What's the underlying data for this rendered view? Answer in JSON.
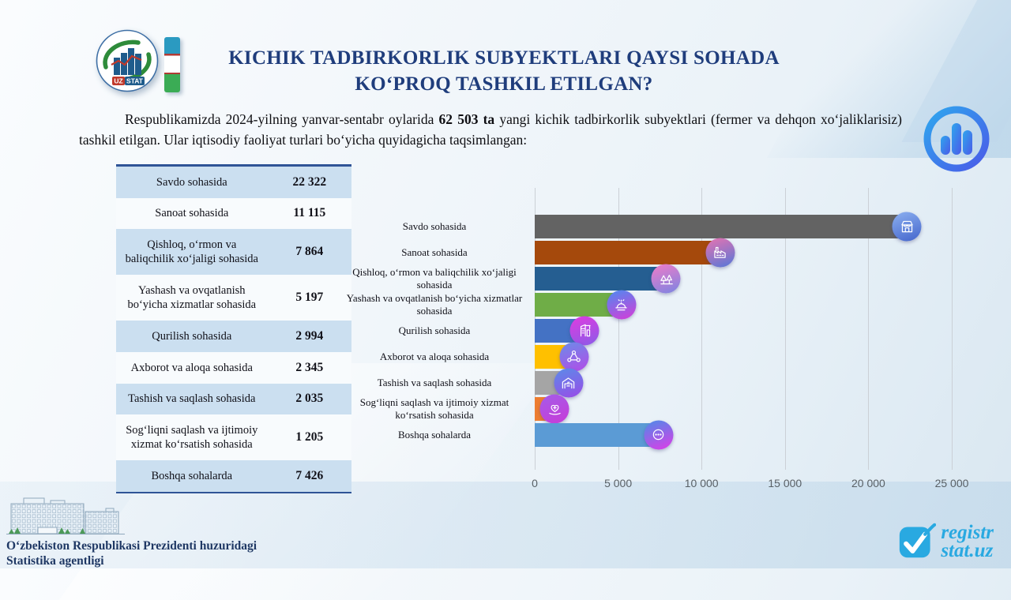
{
  "header": {
    "title_line1": "KICHIK TADBIRKORLIK SUBYEKTLARI QAYSI SOHADA",
    "title_line2": "KO‘PROQ TASHKIL ETILGAN?",
    "logo_uz": "UZ",
    "logo_stat": "STAT"
  },
  "intro": {
    "part1": "Respublikamizda 2024-yilning yanvar-sentabr oylarida ",
    "bold": "62 503 ta",
    "part2": " yangi kichik tadbirkorlik subyektlari (fermer va dehqon xo‘jaliklarisiz) tashkil etilgan. Ular iqtisodiy faoliyat turlari bo‘yicha quyidagicha taqsimlangan:"
  },
  "table": {
    "rows": [
      {
        "label": "Savdo sohasida",
        "value": "22 322"
      },
      {
        "label": "Sanoat sohasida",
        "value": "11 115"
      },
      {
        "label": "Qishloq,  o‘rmon va baliqchilik  xo‘jaligi sohasida",
        "value": "7 864"
      },
      {
        "label": "Yashash va ovqatlanish bo‘yicha  xizmatlar sohasida",
        "value": "5 197"
      },
      {
        "label": "Qurilish  sohasida",
        "value": "2 994"
      },
      {
        "label": "Axborot va aloqa sohasida",
        "value": "2 345"
      },
      {
        "label": "Tashish va saqlash sohasida",
        "value": "2 035"
      },
      {
        "label": "Sog‘liqni  saqlash va ijtimoiy  xizmat ko‘rsatish sohasida",
        "value": "1 205"
      },
      {
        "label": "Boshqa sohalarda",
        "value": "7 426"
      }
    ]
  },
  "chart_data": {
    "type": "bar",
    "orientation": "horizontal",
    "categories": [
      "Savdo sohasida",
      "Sanoat sohasida",
      "Qishloq,  o‘rmon va baliqchilik  xo‘jaligi sohasida",
      "Yashash va ovqatlanish  bo‘yicha xizmatlar  sohasida",
      "Qurilish  sohasida",
      "Axborot va aloqa sohasida",
      "Tashish va saqlash sohasida",
      "Sog‘liqni  saqlash va ijtimoiy  xizmat ko‘rsatish sohasida",
      "Boshqa sohalarda"
    ],
    "values": [
      22322,
      11115,
      7864,
      5197,
      2994,
      2345,
      2035,
      1205,
      7426
    ],
    "xlim": [
      0,
      25000
    ],
    "x_ticks": [
      "0",
      "5 000",
      "10 000",
      "15 000",
      "20 000",
      "25 000"
    ],
    "x_tick_values": [
      0,
      5000,
      10000,
      15000,
      20000,
      25000
    ],
    "grid": "vertical",
    "legend": "none",
    "bar_colors": [
      "#636363",
      "#A5490C",
      "#255E91",
      "#6FAD47",
      "#4472C4",
      "#FFC000",
      "#A5A5A5",
      "#ED7D31",
      "#5B9BD5"
    ],
    "icons": [
      "store-icon",
      "factory-icon",
      "agriculture-icon",
      "catering-icon",
      "construction-icon",
      "communication-icon",
      "warehouse-icon",
      "healthcare-icon",
      "other-icon"
    ],
    "icon_gradients": [
      [
        "#8CB0F0",
        "#4465CC"
      ],
      [
        "#E873B0",
        "#5577D8"
      ],
      [
        "#F07CC8",
        "#7B84E2"
      ],
      [
        "#4C8CF0",
        "#D83BD8"
      ],
      [
        "#E03BE0",
        "#8A5BE8"
      ],
      [
        "#6B8CE8",
        "#B44BE8"
      ],
      [
        "#5A8CE8",
        "#9A4BE8"
      ],
      [
        "#A45CE8",
        "#C83BD8"
      ],
      [
        "#4C8CE8",
        "#E03BE8"
      ]
    ]
  },
  "footer": {
    "agency_line1": "O‘zbekiston  Respublikasi  Prezidenti  huzuridagi",
    "agency_line2": "Statistika  agentligi",
    "site_line1": "registr",
    "site_line2": "stat.uz"
  },
  "colors": {
    "accent_navy": "#1F3D7C",
    "table_border": "#2F5496",
    "table_alt_row": "#CBDFF0",
    "registr_blue": "#29A9E1"
  }
}
